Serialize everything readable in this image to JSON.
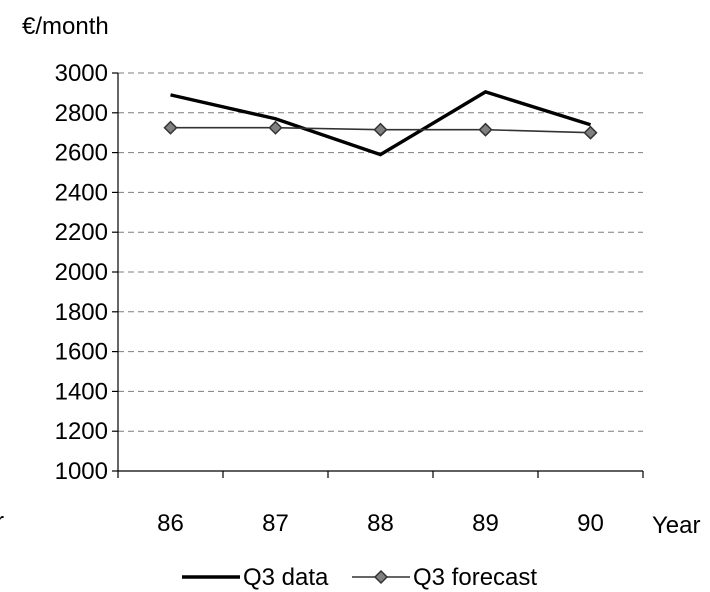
{
  "chart_data": {
    "type": "line",
    "ylabel": "€/month",
    "xlabel": "Year",
    "categories": [
      "86",
      "87",
      "88",
      "89",
      "90"
    ],
    "ylim": [
      1000,
      3000
    ],
    "yticks": [
      1000,
      1200,
      1400,
      1600,
      1800,
      2000,
      2200,
      2400,
      2600,
      2800,
      3000
    ],
    "grid": true,
    "legend": "bottom",
    "series": [
      {
        "name": "Q3 data",
        "values": [
          2890,
          2770,
          2590,
          2905,
          2740
        ],
        "color": "#000000",
        "marker": "none"
      },
      {
        "name": "Q3 forecast",
        "values": [
          2725,
          2725,
          2715,
          2715,
          2700
        ],
        "color": "#333333",
        "marker": "diamond"
      }
    ]
  },
  "left_edge_text": "r"
}
